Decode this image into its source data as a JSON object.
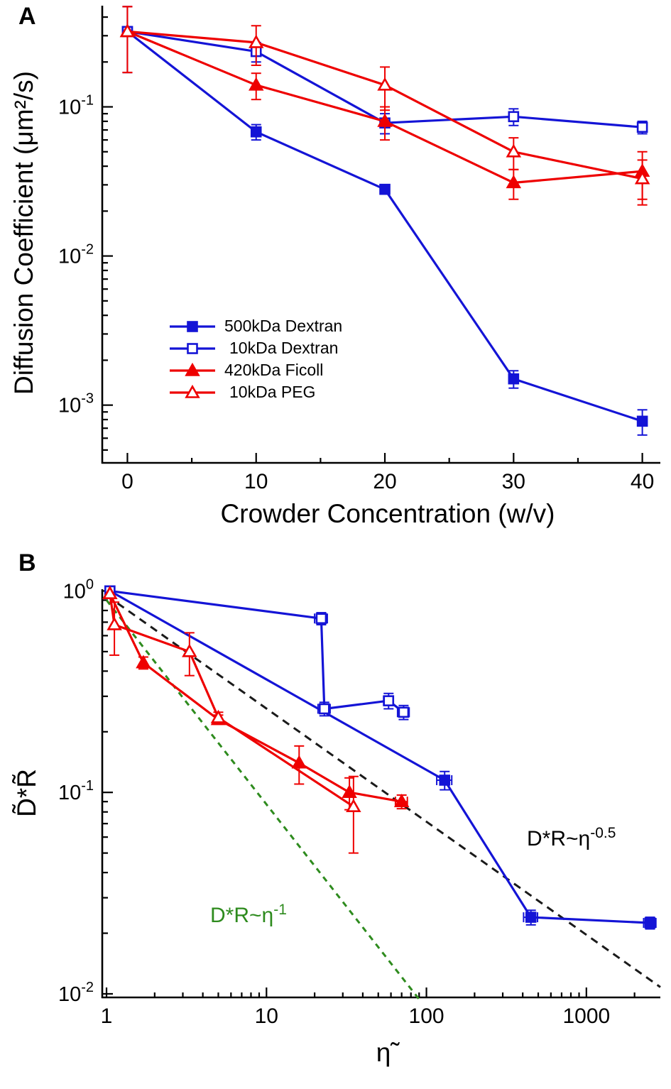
{
  "chart_data": [
    {
      "panel_label": "A",
      "type": "line",
      "xlabel": "Crowder Concentration (w/v)",
      "ylabel": "Diffusion Coefficient (μm²/s)",
      "x_scale": "linear",
      "y_scale": "log",
      "x_ticks": [
        0,
        10,
        20,
        30,
        40
      ],
      "x_minor_ticks": [
        5,
        15,
        25,
        35
      ],
      "x_range": [
        -1.9,
        41.4
      ],
      "y_tick_exponents": [
        -3,
        -2,
        -1
      ],
      "y_range": [
        0.00041,
        0.477
      ],
      "legend_position": "inside-lower-left",
      "series": [
        {
          "name": "500kDa Dextran",
          "color": "#1414d6",
          "marker": "square",
          "fill": true,
          "x": [
            0,
            10,
            20,
            30,
            40
          ],
          "y": [
            0.32,
            0.068,
            0.028,
            0.0015,
            0.00078
          ],
          "y_err": [
            0.15,
            0.008,
            0.002,
            0.0002,
            0.00015
          ]
        },
        {
          "name": "10kDa Dextran",
          "color": "#1414d6",
          "marker": "square",
          "fill": false,
          "x": [
            0,
            10,
            20,
            30,
            40
          ],
          "y": [
            0.32,
            0.235,
            0.078,
            0.086,
            0.073
          ],
          "y_err": [
            0.15,
            0.035,
            0.012,
            0.011,
            0.007
          ]
        },
        {
          "name": "420kDa Ficoll",
          "color": "#ee0000",
          "marker": "triangle",
          "fill": true,
          "x": [
            0,
            10,
            20,
            30,
            40
          ],
          "y": [
            0.32,
            0.14,
            0.08,
            0.031,
            0.037
          ],
          "y_err": [
            0.15,
            0.028,
            0.02,
            0.007,
            0.013
          ]
        },
        {
          "name": "10kDa PEG",
          "color": "#ee0000",
          "marker": "triangle",
          "fill": false,
          "x": [
            0,
            10,
            20,
            30,
            40
          ],
          "y": [
            0.32,
            0.27,
            0.14,
            0.05,
            0.033
          ],
          "y_err": [
            0.15,
            0.08,
            0.045,
            0.012,
            0.011
          ]
        }
      ]
    },
    {
      "panel_label": "B",
      "type": "line",
      "xlabel": "η̃",
      "ylabel": "D̃*R̃",
      "x_scale": "log",
      "y_scale": "log",
      "x_ticks": [
        1,
        10,
        100,
        1000
      ],
      "x_range": [
        0.95,
        2900
      ],
      "y_tick_exponents": [
        -2,
        -1,
        0
      ],
      "y_range": [
        0.0096,
        1.02
      ],
      "series": [
        {
          "name": "500kDa Dextran",
          "color": "#1414d6",
          "marker": "square",
          "fill": true,
          "x": [
            1.05,
            130,
            450,
            2500
          ],
          "y": [
            1.0,
            0.115,
            0.024,
            0.0225
          ],
          "y_err": [
            0,
            0.012,
            0.002,
            0.0015
          ],
          "x_err": [
            0,
            14,
            45,
            220
          ]
        },
        {
          "name": "10kDa Dextran",
          "color": "#1414d6",
          "marker": "square",
          "fill": false,
          "x": [
            1.05,
            22,
            23,
            58,
            72
          ],
          "y": [
            1.0,
            0.73,
            0.26,
            0.285,
            0.25
          ],
          "y_err": [
            0,
            0.05,
            0.02,
            0.025,
            0.02
          ],
          "x_err": [
            0,
            2,
            2,
            4,
            6
          ]
        },
        {
          "name": "420kDa Ficoll",
          "color": "#ee0000",
          "marker": "triangle",
          "fill": true,
          "x": [
            1.05,
            1.7,
            5,
            16,
            33,
            70
          ],
          "y": [
            0.97,
            0.44,
            0.23,
            0.14,
            0.1,
            0.09
          ],
          "y_err": [
            0,
            0.03,
            0.012,
            0.03,
            0.018,
            0.007
          ],
          "x_err": [
            0,
            0,
            0,
            0,
            0,
            6
          ]
        },
        {
          "name": "10kDa PEG",
          "color": "#ee0000",
          "marker": "triangle",
          "fill": false,
          "x": [
            1.05,
            1.12,
            3.3,
            5,
            35
          ],
          "y": [
            0.97,
            0.68,
            0.5,
            0.235,
            0.085
          ],
          "y_err": [
            0,
            0.2,
            0.12,
            0.015,
            0.035
          ],
          "x_err": [
            0,
            0,
            0,
            0,
            0
          ]
        }
      ],
      "guides": [
        {
          "label": "D*R~η^-0.5",
          "color": "#1a1a1a",
          "dash": "11 8",
          "x": [
            1,
            2900
          ],
          "y": [
            0.95,
            0.0108
          ]
        },
        {
          "label": "D*R~η^-1",
          "color": "#2e8b1e",
          "dash": "8 7",
          "x": [
            1,
            90
          ],
          "y": [
            0.9,
            0.0094
          ]
        }
      ],
      "annotations": [
        {
          "base": "D*R~η",
          "exp": "-0.5",
          "color": "#000000"
        },
        {
          "base": "D*R~η",
          "exp": "-1",
          "color": "#2e8b1e"
        }
      ]
    }
  ],
  "colors": {
    "blue": "#1414d6",
    "red": "#ee0000",
    "green": "#2e8b1e",
    "dashed_black": "#1a1a1a"
  }
}
